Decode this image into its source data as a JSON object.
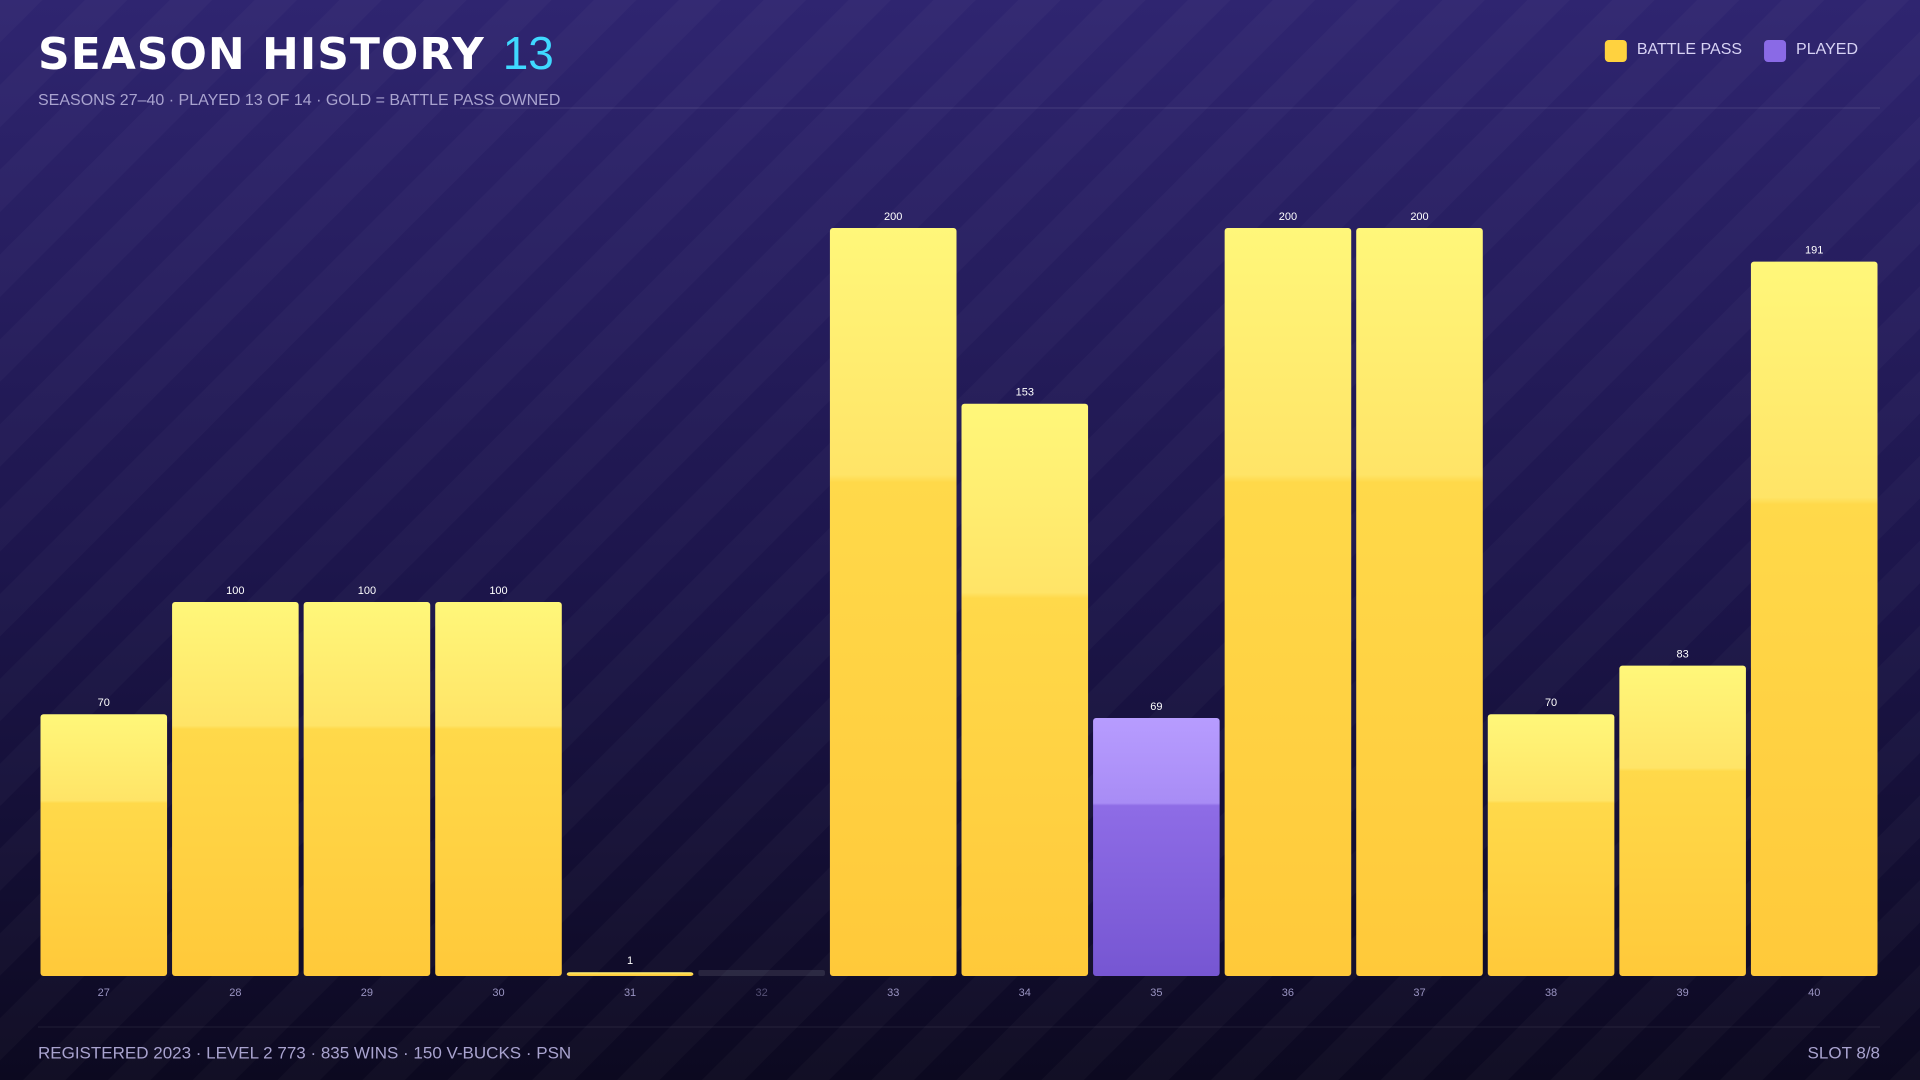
{
  "chart_data": {
    "type": "bar",
    "title": "SEASON HISTORY",
    "title_count": "13",
    "subtitle": "SEASONS 27–40 · PLAYED 13 OF 14 · GOLD = BATTLE PASS OWNED",
    "categories": [
      "27",
      "28",
      "29",
      "30",
      "31",
      "32",
      "33",
      "34",
      "35",
      "36",
      "37",
      "38",
      "39",
      "40"
    ],
    "series": [
      {
        "name": "BATTLE PASS",
        "color": "#ffd23f",
        "values": [
          70,
          100,
          100,
          100,
          1,
          null,
          200,
          153,
          null,
          200,
          200,
          70,
          83,
          191
        ]
      },
      {
        "name": "PLAYED",
        "color": "#8a6ae6",
        "values": [
          null,
          null,
          null,
          null,
          null,
          null,
          null,
          null,
          69,
          null,
          null,
          null,
          null,
          null
        ]
      }
    ],
    "ylim": [
      0,
      200
    ],
    "legend": "top-right",
    "footer": "REGISTERED 2023 · LEVEL 2 773 · 835 WINS · 150 V-BUCKS · PSN",
    "slot": "SLOT 8/8"
  }
}
